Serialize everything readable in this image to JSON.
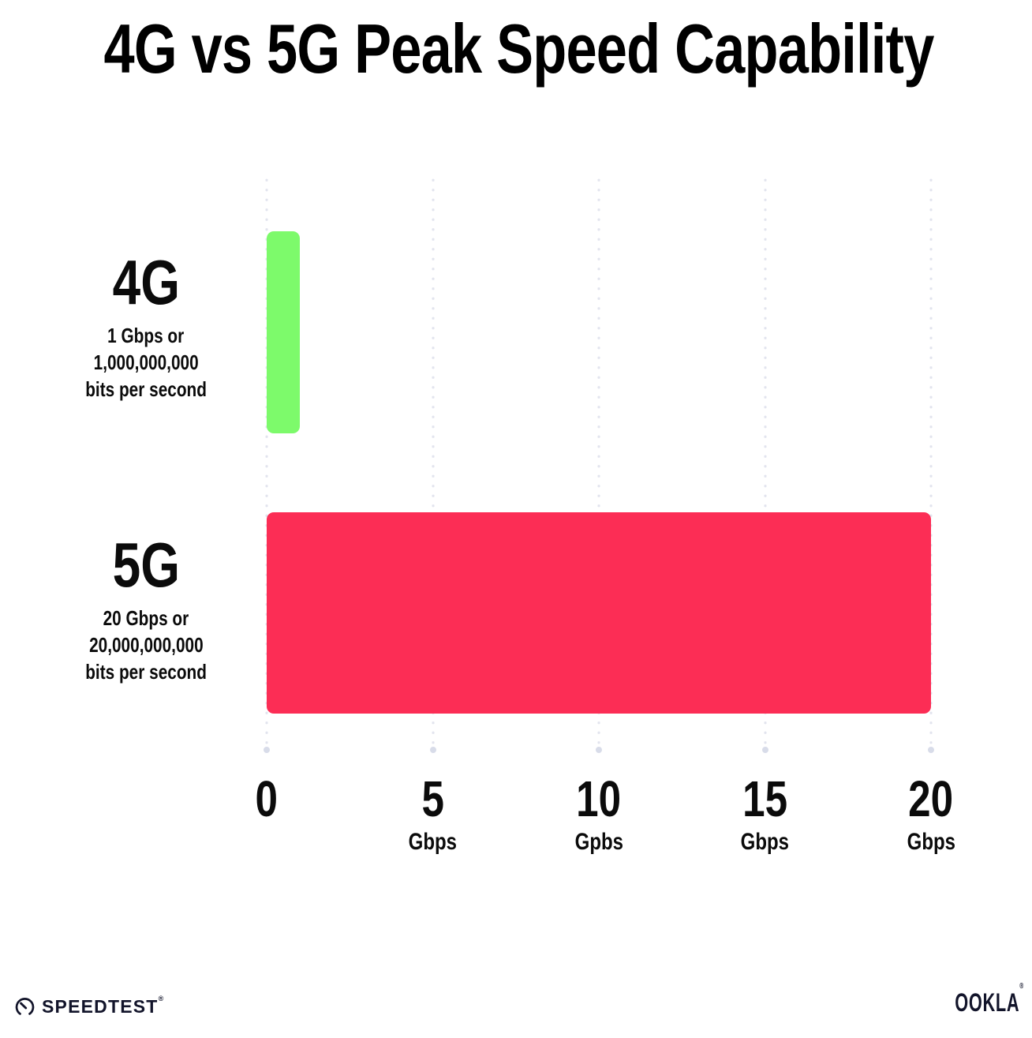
{
  "title": "4G vs 5G Peak Speed Capability",
  "chart_data": {
    "type": "bar",
    "orientation": "horizontal",
    "title": "4G vs 5G Peak Speed Capability",
    "categories": [
      "4G",
      "5G"
    ],
    "values": [
      1,
      20
    ],
    "xlim": [
      0,
      20
    ],
    "grid": "dotted-vertical-gridlines",
    "bar_colors": [
      "#7dfa6b",
      "#fc2d55"
    ],
    "row_labels": [
      {
        "name": "4G",
        "desc_lines": [
          "1 Gbps or",
          "1,000,000,000",
          "bits per second"
        ]
      },
      {
        "name": "5G",
        "desc_lines": [
          "20 Gbps or",
          "20,000,000,000",
          "bits per second"
        ]
      }
    ],
    "x_ticks": [
      {
        "value": "0",
        "unit": ""
      },
      {
        "value": "5",
        "unit": "Gbps"
      },
      {
        "value": "10",
        "unit": "Gpbs"
      },
      {
        "value": "15",
        "unit": "Gbps"
      },
      {
        "value": "20",
        "unit": "Gbps"
      }
    ]
  },
  "footer": {
    "speedtest": "SPEEDTEST",
    "speedtest_reg": "®",
    "ookla": "OOKLA",
    "ookla_reg": "®"
  }
}
